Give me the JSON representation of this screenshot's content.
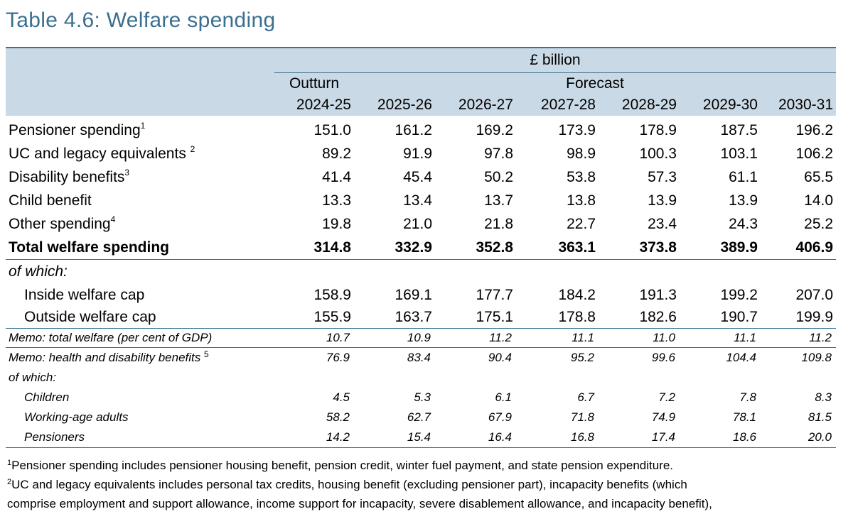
{
  "title": "Table 4.6: Welfare spending",
  "header": {
    "units": "£ billion",
    "outturn_label": "Outturn",
    "forecast_label": "Forecast",
    "years": [
      "2024-25",
      "2025-26",
      "2026-27",
      "2027-28",
      "2028-29",
      "2029-30",
      "2030-31"
    ]
  },
  "rows": {
    "pensioner": {
      "label": "Pensioner spending",
      "note": "1",
      "values": [
        "151.0",
        "161.2",
        "169.2",
        "173.9",
        "178.9",
        "187.5",
        "196.2"
      ]
    },
    "uc": {
      "label": "UC and legacy equivalents ",
      "note": "2",
      "values": [
        "89.2",
        "91.9",
        "97.8",
        "98.9",
        "100.3",
        "103.1",
        "106.2"
      ]
    },
    "disability": {
      "label": "Disability benefits",
      "note": "3",
      "values": [
        "41.4",
        "45.4",
        "50.2",
        "53.8",
        "57.3",
        "61.1",
        "65.5"
      ]
    },
    "child": {
      "label": "Child benefit",
      "values": [
        "13.3",
        "13.4",
        "13.7",
        "13.8",
        "13.9",
        "13.9",
        "14.0"
      ]
    },
    "other": {
      "label": "Other spending",
      "note": "4",
      "values": [
        "19.8",
        "21.0",
        "21.8",
        "22.7",
        "23.4",
        "24.3",
        "25.2"
      ]
    },
    "total": {
      "label": "Total welfare spending",
      "values": [
        "314.8",
        "332.9",
        "352.8",
        "363.1",
        "373.8",
        "389.9",
        "406.9"
      ]
    },
    "of_which": "of which:",
    "inside_cap": {
      "label": "Inside welfare cap",
      "values": [
        "158.9",
        "169.1",
        "177.7",
        "184.2",
        "191.3",
        "199.2",
        "207.0"
      ]
    },
    "outside_cap": {
      "label": "Outside welfare cap",
      "values": [
        "155.9",
        "163.7",
        "175.1",
        "178.8",
        "182.6",
        "190.7",
        "199.9"
      ]
    }
  },
  "memo": {
    "gdp": {
      "label": "Memo: total welfare (per cent of GDP)",
      "values": [
        "10.7",
        "10.9",
        "11.2",
        "11.1",
        "11.0",
        "11.1",
        "11.2"
      ]
    },
    "health": {
      "label": "Memo: health and disability benefits ",
      "note": "5",
      "values": [
        "76.9",
        "83.4",
        "90.4",
        "95.2",
        "99.6",
        "104.4",
        "109.8"
      ]
    },
    "of_which": "of which:",
    "children": {
      "label": "Children",
      "values": [
        "4.5",
        "5.3",
        "6.1",
        "6.7",
        "7.2",
        "7.8",
        "8.3"
      ]
    },
    "working_age": {
      "label": "Working-age adults",
      "values": [
        "58.2",
        "62.7",
        "67.9",
        "71.8",
        "74.9",
        "78.1",
        "81.5"
      ]
    },
    "pensioners": {
      "label": "Pensioners",
      "values": [
        "14.2",
        "15.4",
        "16.4",
        "16.8",
        "17.4",
        "18.6",
        "20.0"
      ]
    }
  },
  "notes": [
    {
      "mark": "1",
      "text": "Pensioner spending includes pensioner housing benefit, pension credit, winter fuel payment, and state pension expenditure."
    },
    {
      "mark": "2",
      "text": "UC and legacy equivalents includes personal tax credits, housing benefit (excluding pensioner part), incapacity benefits (which"
    },
    {
      "text": "comprise employment and support allowance, income support for incapacity, severe disablement allowance, and incapacity benefit),"
    }
  ]
}
